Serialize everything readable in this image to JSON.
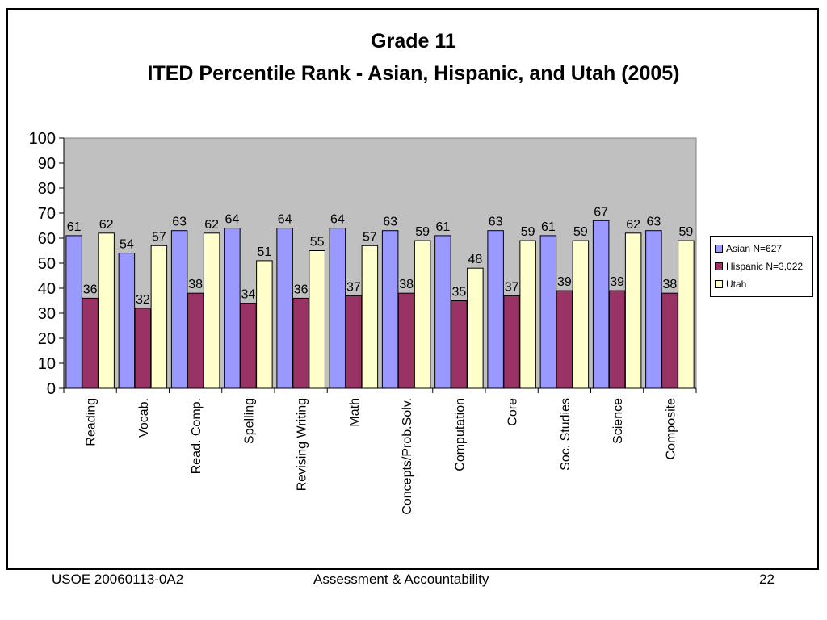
{
  "chart_data": {
    "type": "bar",
    "title": "Grade 11",
    "subtitle": "ITED Percentile Rank - Asian, Hispanic, and Utah (2005)",
    "categories": [
      "Reading",
      "Vocab.",
      "Read. Comp.",
      "Spelling",
      "Revising Writing",
      "Math",
      "Concepts/Prob.Solv.",
      "Computation",
      "Core",
      "Soc. Studies",
      "Science",
      "Composite"
    ],
    "series": [
      {
        "name": "Asian N=627",
        "color": "#9999ff",
        "values": [
          61,
          54,
          63,
          64,
          64,
          64,
          63,
          61,
          63,
          61,
          67,
          63
        ]
      },
      {
        "name": "Hispanic N=3,022",
        "color": "#993366",
        "values": [
          36,
          32,
          38,
          34,
          36,
          37,
          38,
          35,
          37,
          39,
          39,
          38
        ]
      },
      {
        "name": "Utah",
        "color": "#ffffcc",
        "values": [
          62,
          57,
          62,
          51,
          55,
          57,
          59,
          48,
          59,
          59,
          62,
          59
        ]
      }
    ],
    "ylim": [
      0,
      100
    ],
    "yticks": [
      0,
      10,
      20,
      30,
      40,
      50,
      60,
      70,
      80,
      90,
      100
    ],
    "xlabel": "",
    "ylabel": "",
    "plot_background": "#c0c0c0",
    "grid": false,
    "legend_position": "right"
  },
  "footer": {
    "left": "USOE 20060113-0A2",
    "center": "Assessment & Accountability",
    "right": "22"
  }
}
